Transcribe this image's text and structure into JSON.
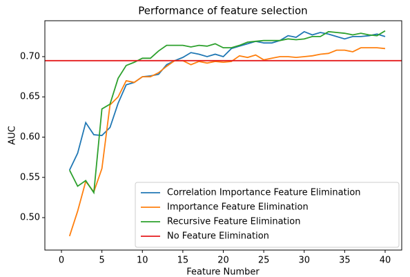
{
  "chart_data": {
    "type": "line",
    "title": "Performance of feature selection",
    "xlabel": "Feature Number",
    "ylabel": "AUC",
    "x": [
      1,
      2,
      3,
      4,
      5,
      6,
      7,
      8,
      9,
      10,
      11,
      12,
      13,
      14,
      15,
      16,
      17,
      18,
      19,
      20,
      21,
      22,
      23,
      24,
      25,
      26,
      27,
      28,
      29,
      30,
      31,
      32,
      33,
      34,
      35,
      36,
      37,
      38,
      39,
      40
    ],
    "series": [
      {
        "name": "Correlation Importance Feature Elimination",
        "color": "#1f77b4",
        "values": [
          0.559,
          0.58,
          0.618,
          0.603,
          0.602,
          0.612,
          0.642,
          0.665,
          0.668,
          0.675,
          0.676,
          0.678,
          0.69,
          0.695,
          0.699,
          0.705,
          0.703,
          0.7,
          0.703,
          0.7,
          0.71,
          0.713,
          0.716,
          0.719,
          0.717,
          0.717,
          0.72,
          0.726,
          0.724,
          0.731,
          0.727,
          0.73,
          0.728,
          0.725,
          0.722,
          0.725,
          0.725,
          0.726,
          0.728,
          0.725
        ]
      },
      {
        "name": "Importance Feature Elimination",
        "color": "#ff7f0e",
        "values": [
          0.477,
          0.508,
          0.545,
          0.532,
          0.561,
          0.64,
          0.65,
          0.67,
          0.668,
          0.675,
          0.675,
          0.68,
          0.688,
          0.695,
          0.695,
          0.69,
          0.694,
          0.692,
          0.694,
          0.693,
          0.694,
          0.701,
          0.699,
          0.702,
          0.696,
          0.698,
          0.7,
          0.7,
          0.699,
          0.7,
          0.701,
          0.703,
          0.704,
          0.708,
          0.708,
          0.706,
          0.711,
          0.711,
          0.711,
          0.71
        ]
      },
      {
        "name": "Recursive Feature Elimination",
        "color": "#2ca02c",
        "values": [
          0.559,
          0.539,
          0.546,
          0.531,
          0.635,
          0.641,
          0.673,
          0.689,
          0.693,
          0.698,
          0.698,
          0.707,
          0.714,
          0.714,
          0.714,
          0.712,
          0.714,
          0.713,
          0.716,
          0.711,
          0.711,
          0.714,
          0.718,
          0.719,
          0.72,
          0.72,
          0.72,
          0.722,
          0.721,
          0.722,
          0.725,
          0.725,
          0.731,
          0.73,
          0.729,
          0.727,
          0.729,
          0.727,
          0.726,
          0.732
        ]
      }
    ],
    "hlines": [
      {
        "name": "No Feature Elimination",
        "color": "#e41a1c",
        "value": 0.695
      }
    ],
    "xlim": [
      -2.05,
      42.05
    ],
    "ylim": [
      0.4597,
      0.7446
    ],
    "xticks": [
      0,
      5,
      10,
      15,
      20,
      25,
      30,
      35,
      40
    ],
    "yticks": [
      {
        "value": 0.5,
        "label": "0.50"
      },
      {
        "value": 0.55,
        "label": "0.55"
      },
      {
        "value": 0.6,
        "label": "0.60"
      },
      {
        "value": 0.65,
        "label": "0.65"
      },
      {
        "value": 0.7,
        "label": "0.70"
      }
    ],
    "legend": "lower right"
  }
}
